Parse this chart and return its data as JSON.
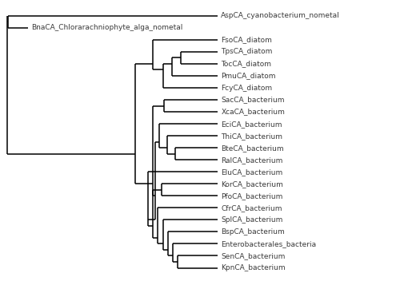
{
  "taxa": [
    "AspCA_cyanobacterium_nometal",
    "BnaCA_Chlorarachniophyte_alga_nometal",
    "FsoCA_diatom",
    "TpsCA_diatom",
    "TocCA_diatom",
    "PmuCA_diatom",
    "FcyCA_diatom",
    "SacCA_bacterium",
    "XcaCA_bacterium",
    "EciCA_bacterium",
    "ThiCA_bacterium",
    "BteCA_bacterium",
    "RalCA_bacterium",
    "EluCA_bacterium",
    "KorCA_bacterium",
    "PfoCA_bacterium",
    "CfrCA_bacterium",
    "SplCA_bacterium",
    "BspCA_bacterium",
    "Enterobacterales_bacteria",
    "SenCA_bacterium",
    "KpnCA_bacterium"
  ],
  "background_color": "#ffffff",
  "line_color": "#000000",
  "text_color": "#3a3a3a",
  "font_size": 6.5,
  "line_width": 1.1,
  "fig_width": 5.0,
  "fig_height": 3.52,
  "dpi": 100
}
